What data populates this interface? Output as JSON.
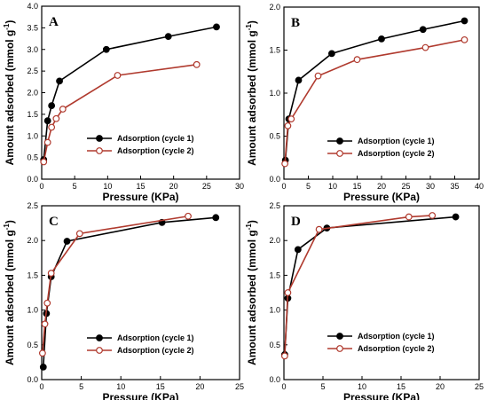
{
  "chart_data": [
    {
      "type": "line",
      "panel_label": "A",
      "xlabel": "Pressure (KPa)",
      "ylabel_main": "Amount adsorbed (mmol g",
      "ylabel_sup": "-1",
      "ylabel_close": ")",
      "xlim": [
        0,
        30
      ],
      "ylim": [
        0,
        4.0
      ],
      "xticks": [
        0,
        5,
        10,
        15,
        20,
        25,
        30
      ],
      "yticks": [
        0.0,
        0.5,
        1.0,
        1.5,
        2.0,
        2.5,
        3.0,
        3.5,
        4.0
      ],
      "ytick_labels": [
        "0.0",
        "0.5",
        "1.0",
        "1.5",
        "2.0",
        "2.5",
        "3.0",
        "3.5",
        "4.0"
      ],
      "legend_position": "center-right",
      "series": [
        {
          "name": "Adsorption (cycle 1)",
          "color": "#000000",
          "marker": "filled-circle",
          "x": [
            0.3,
            0.9,
            1.5,
            2.7,
            9.8,
            19.2,
            26.5
          ],
          "y": [
            0.45,
            1.35,
            1.7,
            2.27,
            3.0,
            3.3,
            3.52
          ]
        },
        {
          "name": "Adsorption (cycle 2)",
          "color": "#b03a2e",
          "marker": "open-circle",
          "x": [
            0.3,
            0.9,
            1.5,
            2.2,
            3.2,
            11.5,
            23.5
          ],
          "y": [
            0.4,
            0.85,
            1.2,
            1.4,
            1.62,
            2.4,
            2.65
          ]
        }
      ]
    },
    {
      "type": "line",
      "panel_label": "B",
      "xlabel": "Pressure (KPa)",
      "ylabel_main": "Amount adsorbed (mmol g",
      "ylabel_sup": "-1",
      "ylabel_close": ")",
      "xlim": [
        0,
        40
      ],
      "ylim": [
        0,
        2.0
      ],
      "xticks": [
        0,
        5,
        10,
        15,
        20,
        25,
        30,
        35,
        40
      ],
      "yticks": [
        0.0,
        0.5,
        1.0,
        1.5,
        2.0
      ],
      "ytick_labels": [
        "0.0",
        "0.5",
        "1.0",
        "1.5",
        "2.0"
      ],
      "legend_position": "center-right",
      "series": [
        {
          "name": "Adsorption (cycle 1)",
          "color": "#000000",
          "marker": "filled-circle",
          "x": [
            0.3,
            1.0,
            3.0,
            9.8,
            20.0,
            28.5,
            37.0
          ],
          "y": [
            0.22,
            0.7,
            1.15,
            1.46,
            1.63,
            1.74,
            1.84
          ]
        },
        {
          "name": "Adsorption (cycle 2)",
          "color": "#b03a2e",
          "marker": "open-circle",
          "x": [
            0.2,
            0.8,
            1.5,
            7.0,
            15.0,
            29.0,
            37.0
          ],
          "y": [
            0.18,
            0.62,
            0.7,
            1.2,
            1.39,
            1.53,
            1.62
          ]
        }
      ]
    },
    {
      "type": "line",
      "panel_label": "C",
      "xlabel": "Pressure (KPa)",
      "ylabel_main": "Amount adsorbed (mmol g",
      "ylabel_sup": "-1",
      "ylabel_close": ")",
      "xlim": [
        0,
        25
      ],
      "ylim": [
        0,
        2.5
      ],
      "xticks": [
        0,
        5,
        10,
        15,
        20,
        25
      ],
      "yticks": [
        0.0,
        0.5,
        1.0,
        1.5,
        2.0,
        2.5
      ],
      "ytick_labels": [
        "0.0",
        "0.5",
        "1.0",
        "1.5",
        "2.0",
        "2.5"
      ],
      "legend_position": "bottom-right",
      "series": [
        {
          "name": "Adsorption (cycle 1)",
          "color": "#000000",
          "marker": "filled-circle",
          "x": [
            0.2,
            0.6,
            1.2,
            3.2,
            15.2,
            22.0
          ],
          "y": [
            0.18,
            0.95,
            1.48,
            1.99,
            2.26,
            2.33
          ]
        },
        {
          "name": "Adsorption (cycle 2)",
          "color": "#b03a2e",
          "marker": "open-circle",
          "x": [
            0.1,
            0.4,
            0.7,
            1.2,
            4.8,
            18.5
          ],
          "y": [
            0.38,
            0.8,
            1.1,
            1.53,
            2.1,
            2.35
          ]
        }
      ]
    },
    {
      "type": "line",
      "panel_label": "D",
      "xlabel": "Pressure (KPa)",
      "ylabel_main": "Amount adsorbed (mmol g",
      "ylabel_sup": "-1",
      "ylabel_close": ")",
      "xlim": [
        0,
        25
      ],
      "ylim": [
        0,
        2.5
      ],
      "xticks": [
        0,
        5,
        10,
        15,
        20,
        25
      ],
      "yticks": [
        0.0,
        0.5,
        1.0,
        1.5,
        2.0,
        2.5
      ],
      "ytick_labels": [
        "0.0",
        "0.5",
        "1.0",
        "1.5",
        "2.0",
        "2.5"
      ],
      "legend_position": "bottom-right",
      "series": [
        {
          "name": "Adsorption (cycle 1)",
          "color": "#000000",
          "marker": "filled-circle",
          "x": [
            0.1,
            0.5,
            1.8,
            5.5,
            22.0
          ],
          "y": [
            0.36,
            1.17,
            1.87,
            2.18,
            2.34
          ]
        },
        {
          "name": "Adsorption (cycle 2)",
          "color": "#b03a2e",
          "marker": "open-circle",
          "x": [
            0.1,
            0.5,
            4.5,
            16.0,
            19.0
          ],
          "y": [
            0.34,
            1.25,
            2.16,
            2.34,
            2.36
          ]
        }
      ]
    }
  ]
}
